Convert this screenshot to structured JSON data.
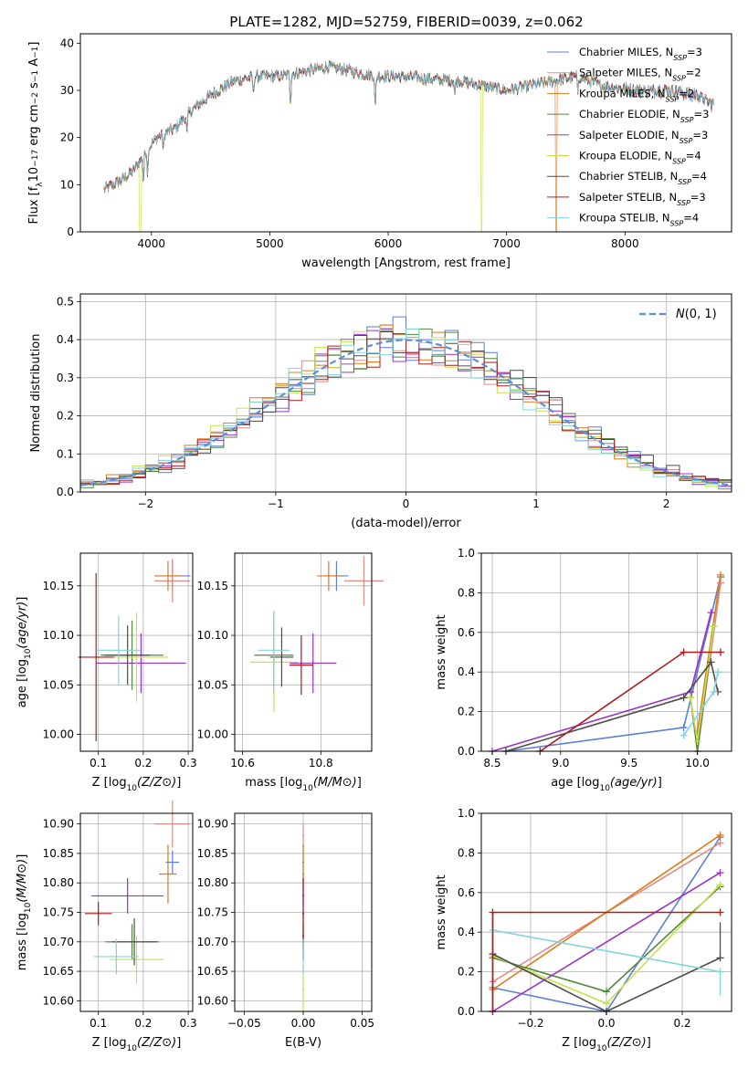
{
  "title": "PLATE=1282, MJD=52759, FIBERID=0039, z=0.062",
  "colors": [
    "#5a7fd6",
    "#e08a86",
    "#e07b1a",
    "#4f8a3c",
    "#9b30c9",
    "#c8e04a",
    "#4d4d4d",
    "#b01a1a",
    "#7fd3e0"
  ],
  "chart_data": [
    {
      "id": "spectrum",
      "type": "line",
      "title": "PLATE=1282, MJD=52759, FIBERID=0039, z=0.062",
      "xlabel": "wavelength [Angstrom, rest frame]",
      "ylabel": "Flux [f_λ 10^-17 erg cm^-2 s^-1 A^-1]",
      "xlim": [
        3400,
        8900
      ],
      "ylim": [
        0,
        42
      ],
      "xticks": [
        4000,
        5000,
        6000,
        7000,
        8000
      ],
      "yticks": [
        0,
        10,
        20,
        30,
        40
      ],
      "grid": false,
      "legend": "top-right",
      "continuum": [
        [
          3600,
          9
        ],
        [
          3750,
          11
        ],
        [
          3850,
          13
        ],
        [
          3950,
          17
        ],
        [
          4050,
          20
        ],
        [
          4200,
          22
        ],
        [
          4350,
          26
        ],
        [
          4500,
          29
        ],
        [
          4700,
          32
        ],
        [
          4900,
          33
        ],
        [
          5100,
          33
        ],
        [
          5300,
          34
        ],
        [
          5500,
          35
        ],
        [
          5700,
          34
        ],
        [
          5900,
          33
        ],
        [
          6100,
          33
        ],
        [
          6300,
          32.5
        ],
        [
          6600,
          32
        ],
        [
          6800,
          31
        ],
        [
          7000,
          30
        ],
        [
          7200,
          31
        ],
        [
          7400,
          32
        ],
        [
          7600,
          33
        ],
        [
          7800,
          31
        ],
        [
          8100,
          30
        ],
        [
          8400,
          30
        ],
        [
          8600,
          29
        ],
        [
          8750,
          27
        ]
      ],
      "absorption": [
        [
          3933,
          7
        ],
        [
          3968,
          6
        ],
        [
          4101,
          4
        ],
        [
          4300,
          5
        ],
        [
          4861,
          4
        ],
        [
          5175,
          7
        ],
        [
          5890,
          8
        ],
        [
          6563,
          3
        ],
        [
          7600,
          4
        ]
      ],
      "dropouts": [
        {
          "series": 5,
          "x": 3905
        },
        {
          "series": 5,
          "x": 6790
        },
        {
          "series": 2,
          "x": 7420
        }
      ],
      "series": [
        {
          "name": "Chabrier MILES, N_SSP=3",
          "label_main": "Chabrier MILES, N",
          "label_sub": "SSP",
          "label_tail": "=3",
          "color": "#5a7fd6"
        },
        {
          "name": "Salpeter MILES, N_SSP=2",
          "label_main": "Salpeter MILES, N",
          "label_sub": "SSP",
          "label_tail": "=2",
          "color": "#e08a86"
        },
        {
          "name": "Kroupa MILES, N_SSP=2",
          "label_main": "Kroupa MILES, N",
          "label_sub": "SSP",
          "label_tail": "=2",
          "color": "#e07b1a"
        },
        {
          "name": "Chabrier ELODIE, N_SSP=3",
          "label_main": "Chabrier ELODIE, N",
          "label_sub": "SSP",
          "label_tail": "=3",
          "color": "#4f8a3c"
        },
        {
          "name": "Salpeter ELODIE, N_SSP=3",
          "label_main": "Salpeter ELODIE, N",
          "label_sub": "SSP",
          "label_tail": "=3",
          "color": "#9b30c9"
        },
        {
          "name": "Kroupa ELODIE, N_SSP=4",
          "label_main": "Kroupa ELODIE, N",
          "label_sub": "SSP",
          "label_tail": "=4",
          "color": "#c8e04a"
        },
        {
          "name": "Chabrier STELIB, N_SSP=4",
          "label_main": "Chabrier STELIB, N",
          "label_sub": "SSP",
          "label_tail": "=4",
          "color": "#4d4d4d"
        },
        {
          "name": "Salpeter STELIB, N_SSP=3",
          "label_main": "Salpeter STELIB, N",
          "label_sub": "SSP",
          "label_tail": "=3",
          "color": "#b01a1a"
        },
        {
          "name": "Kroupa STELIB, N_SSP=4",
          "label_main": "Kroupa STELIB, N",
          "label_sub": "SSP",
          "label_tail": "=4",
          "color": "#7fd3e0"
        }
      ]
    },
    {
      "id": "residuals",
      "type": "line",
      "xlabel": "(data-model)/error",
      "ylabel": "Normed distribution",
      "xlim": [
        -2.5,
        2.5
      ],
      "ylim": [
        0,
        0.52
      ],
      "xticks": [
        -2,
        -1,
        0,
        1,
        2
      ],
      "yticks": [
        0.0,
        0.1,
        0.2,
        0.3,
        0.4,
        0.5
      ],
      "grid": true,
      "legend": "top-right",
      "reference": {
        "name": "N(0,1)",
        "mu": 0,
        "sigma": 1,
        "color": "#5b8fd6"
      },
      "bin_width": 0.1,
      "n_series": 9
    },
    {
      "id": "age_vs_Z",
      "type": "scatter",
      "xlabel": "Z [log10(Z/Z⊙)]",
      "ylabel": "age [log10(age/yr)]",
      "xlim": [
        0.06,
        0.31
      ],
      "ylim": [
        9.983,
        10.183
      ],
      "xticks": [
        0.1,
        0.2,
        0.3
      ],
      "yticks": [
        10.0,
        10.05,
        10.1,
        10.15
      ],
      "grid": true,
      "points": [
        {
          "x": 0.265,
          "y": 10.16,
          "xerr": 0.04,
          "yerr": 0.017,
          "c": 0
        },
        {
          "x": 0.265,
          "y": 10.155,
          "xerr": 0.04,
          "yerr": 0.022,
          "c": 1
        },
        {
          "x": 0.255,
          "y": 10.16,
          "xerr": 0.03,
          "yerr": 0.015,
          "c": 2
        },
        {
          "x": 0.175,
          "y": 10.08,
          "xerr": 0.07,
          "yerr": 0.035,
          "c": 3
        },
        {
          "x": 0.195,
          "y": 10.072,
          "xerr": 0.1,
          "yerr": 0.03,
          "c": 4
        },
        {
          "x": 0.185,
          "y": 10.078,
          "xerr": 0.07,
          "yerr": 0.045,
          "c": 5
        },
        {
          "x": 0.165,
          "y": 10.08,
          "xerr": 0.05,
          "yerr": 0.03,
          "c": 6
        },
        {
          "x": 0.095,
          "y": 10.078,
          "xerr": 0.04,
          "yerr": 0.085,
          "c": 7
        },
        {
          "x": 0.145,
          "y": 10.085,
          "xerr": 0.05,
          "yerr": 0.035,
          "c": 8
        }
      ]
    },
    {
      "id": "age_vs_mass",
      "type": "scatter",
      "xlabel": "mass [log10(M/M⊙)]",
      "xlim": [
        10.58,
        10.93
      ],
      "ylim": [
        9.983,
        10.183
      ],
      "xticks": [
        10.6,
        10.8
      ],
      "yticks": [
        10.0,
        10.05,
        10.1,
        10.15
      ],
      "grid": true,
      "points": [
        {
          "x": 10.84,
          "y": 10.16,
          "xerr": 0.03,
          "yerr": 0.015,
          "c": 0
        },
        {
          "x": 10.91,
          "y": 10.155,
          "xerr": 0.05,
          "yerr": 0.025,
          "c": 1
        },
        {
          "x": 10.82,
          "y": 10.16,
          "xerr": 0.03,
          "yerr": 0.015,
          "c": 2
        },
        {
          "x": 10.68,
          "y": 10.08,
          "xerr": 0.05,
          "yerr": 0.04,
          "c": 3
        },
        {
          "x": 10.78,
          "y": 10.072,
          "xerr": 0.06,
          "yerr": 0.03,
          "c": 4
        },
        {
          "x": 10.68,
          "y": 10.073,
          "xerr": 0.06,
          "yerr": 0.05,
          "c": 5
        },
        {
          "x": 10.7,
          "y": 10.078,
          "xerr": 0.03,
          "yerr": 0.03,
          "c": 6
        },
        {
          "x": 10.75,
          "y": 10.07,
          "xerr": 0.03,
          "yerr": 0.03,
          "c": 7
        },
        {
          "x": 10.68,
          "y": 10.085,
          "xerr": 0.04,
          "yerr": 0.04,
          "c": 8
        }
      ]
    },
    {
      "id": "weight_vs_age",
      "type": "line",
      "xlabel": "age [log10(age/yr)]",
      "ylabel": "mass weight",
      "xlim": [
        8.42,
        10.25
      ],
      "ylim": [
        0,
        1
      ],
      "xticks": [
        8.5,
        9.0,
        9.5,
        10.0
      ],
      "yticks": [
        0.0,
        0.2,
        0.4,
        0.6,
        0.8,
        1.0
      ],
      "grid": true,
      "series": [
        {
          "c": 0,
          "points": [
            [
              8.6,
              0.0
            ],
            [
              9.9,
              0.12
            ],
            [
              10.17,
              0.88
            ]
          ]
        },
        {
          "c": 1,
          "points": [
            [
              10.0,
              0.0
            ],
            [
              10.17,
              0.85
            ]
          ]
        },
        {
          "c": 2,
          "points": [
            [
              10.0,
              0.1
            ],
            [
              10.17,
              0.89
            ]
          ]
        },
        {
          "c": 3,
          "points": [
            [
              9.95,
              0.27
            ],
            [
              10.0,
              0.0
            ],
            [
              10.12,
              0.63
            ]
          ]
        },
        {
          "c": 4,
          "points": [
            [
              8.5,
              0.0
            ],
            [
              9.95,
              0.3
            ],
            [
              10.1,
              0.7
            ]
          ]
        },
        {
          "c": 5,
          "points": [
            [
              9.95,
              0.27
            ],
            [
              10.0,
              0.05
            ],
            [
              10.12,
              0.63
            ]
          ]
        },
        {
          "c": 6,
          "points": [
            [
              8.6,
              0.0
            ],
            [
              9.9,
              0.27
            ],
            [
              10.1,
              0.45
            ],
            [
              10.15,
              0.3
            ]
          ]
        },
        {
          "c": 7,
          "points": [
            [
              8.85,
              0.0
            ],
            [
              9.9,
              0.5
            ],
            [
              10.17,
              0.5
            ]
          ]
        },
        {
          "c": 8,
          "points": [
            [
              9.9,
              0.08
            ],
            [
              10.12,
              0.3
            ],
            [
              10.15,
              0.4
            ]
          ]
        }
      ]
    },
    {
      "id": "mass_vs_Z",
      "type": "scatter",
      "xlabel": "Z [log10(Z/Z⊙)]",
      "ylabel": "mass [log10(M/M⊙)]",
      "xlim": [
        0.06,
        0.31
      ],
      "ylim": [
        10.582,
        10.918
      ],
      "xticks": [
        0.1,
        0.2,
        0.3
      ],
      "yticks": [
        10.6,
        10.65,
        10.7,
        10.75,
        10.8,
        10.85,
        10.9
      ],
      "grid": true,
      "points": [
        {
          "x": 0.265,
          "y": 10.835,
          "xerr": 0.015,
          "yerr": 0.02,
          "c": 0
        },
        {
          "x": 0.265,
          "y": 10.9,
          "xerr": 0.04,
          "yerr": 0.04,
          "c": 1
        },
        {
          "x": 0.255,
          "y": 10.815,
          "xerr": 0.02,
          "yerr": 0.05,
          "c": 2
        },
        {
          "x": 0.175,
          "y": 10.7,
          "xerr": 0.06,
          "yerr": 0.03,
          "c": 3
        },
        {
          "x": 0.165,
          "y": 10.778,
          "xerr": 0.08,
          "yerr": 0.03,
          "c": 4
        },
        {
          "x": 0.185,
          "y": 10.67,
          "xerr": 0.06,
          "yerr": 0.04,
          "c": 5
        },
        {
          "x": 0.18,
          "y": 10.7,
          "xerr": 0.05,
          "yerr": 0.04,
          "c": 6
        },
        {
          "x": 0.1,
          "y": 10.748,
          "xerr": 0.03,
          "yerr": 0.02,
          "c": 7
        },
        {
          "x": 0.14,
          "y": 10.675,
          "xerr": 0.05,
          "yerr": 0.03,
          "c": 8
        }
      ]
    },
    {
      "id": "mass_vs_ebv",
      "type": "scatter",
      "xlabel": "E(B-V)",
      "xlim": [
        -0.058,
        0.058
      ],
      "ylim": [
        10.582,
        10.918
      ],
      "xticks": [
        -0.05,
        0.0,
        0.05
      ],
      "yticks": [
        10.6,
        10.65,
        10.7,
        10.75,
        10.8,
        10.85,
        10.9
      ],
      "grid": true,
      "points": [
        {
          "x": 0.0,
          "y": 10.835,
          "yerr": 0.03,
          "c": 0
        },
        {
          "x": 0.0,
          "y": 10.88,
          "yerr": 0.02,
          "c": 1
        },
        {
          "x": 0.0,
          "y": 10.815,
          "yerr": 0.05,
          "c": 2
        },
        {
          "x": 0.0,
          "y": 10.7,
          "yerr": 0.03,
          "c": 3
        },
        {
          "x": 0.0,
          "y": 10.778,
          "yerr": 0.03,
          "c": 4
        },
        {
          "x": 0.0,
          "y": 10.62,
          "yerr": 0.04,
          "c": 5
        },
        {
          "x": 0.0,
          "y": 10.71,
          "yerr": 0.04,
          "c": 6
        },
        {
          "x": 0.0,
          "y": 10.748,
          "yerr": 0.06,
          "c": 7
        },
        {
          "x": 0.0,
          "y": 10.675,
          "yerr": 0.03,
          "c": 8
        }
      ]
    },
    {
      "id": "weight_vs_Z",
      "type": "line",
      "xlabel": "Z [log10(Z/Z⊙)]",
      "ylabel": "mass weight",
      "xlim": [
        -0.33,
        0.33
      ],
      "ylim": [
        0,
        1
      ],
      "xticks": [
        -0.2,
        0.0,
        0.2
      ],
      "yticks": [
        0.0,
        0.2,
        0.4,
        0.6,
        0.8,
        1.0
      ],
      "grid": true,
      "series": [
        {
          "c": 0,
          "points": [
            [
              -0.3,
              0.12
            ],
            [
              0.0,
              0.0
            ],
            [
              0.3,
              0.88
            ]
          ]
        },
        {
          "c": 1,
          "points": [
            [
              -0.3,
              0.15
            ],
            [
              0.3,
              0.85
            ]
          ]
        },
        {
          "c": 2,
          "points": [
            [
              -0.3,
              0.11
            ],
            [
              0.3,
              0.89
            ]
          ]
        },
        {
          "c": 3,
          "points": [
            [
              -0.3,
              0.27
            ],
            [
              0.0,
              0.1
            ],
            [
              0.3,
              0.63
            ]
          ]
        },
        {
          "c": 4,
          "points": [
            [
              -0.3,
              0.0
            ],
            [
              0.3,
              0.7
            ]
          ]
        },
        {
          "c": 5,
          "points": [
            [
              -0.3,
              0.28
            ],
            [
              0.0,
              0.04
            ],
            [
              0.3,
              0.64
            ]
          ]
        },
        {
          "c": 6,
          "points": [
            [
              -0.3,
              0.29
            ],
            [
              0.0,
              0.0
            ],
            [
              0.3,
              0.27
            ]
          ]
        },
        {
          "c": 7,
          "points": [
            [
              -0.3,
              0.0
            ],
            [
              -0.3,
              0.5
            ],
            [
              0.3,
              0.5
            ]
          ]
        },
        {
          "c": 8,
          "points": [
            [
              -0.3,
              0.41
            ],
            [
              0.3,
              0.2
            ]
          ]
        }
      ],
      "marker_stacks": [
        {
          "c": 7,
          "x": -0.3,
          "ys": [
            0.5,
            0.0
          ]
        },
        {
          "c": 6,
          "x": 0.3,
          "ys": [
            0.45,
            0.27
          ]
        },
        {
          "c": 8,
          "x": 0.3,
          "ys": [
            0.2,
            0.1,
            0.08
          ]
        }
      ]
    }
  ]
}
